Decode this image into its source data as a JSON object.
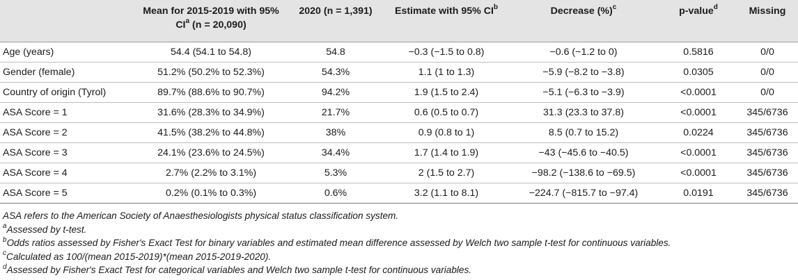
{
  "table": {
    "headers": [
      {
        "pre": "",
        "sup": "",
        "post": ""
      },
      {
        "pre": "Mean for 2015-2019 with 95% CI",
        "sup": "a",
        "post": " (n = 20,090)"
      },
      {
        "pre": "2020 (n = 1,391)",
        "sup": "",
        "post": ""
      },
      {
        "pre": "Estimate with 95% CI",
        "sup": "b",
        "post": ""
      },
      {
        "pre": "Decrease (%)",
        "sup": "c",
        "post": ""
      },
      {
        "pre": "p-value",
        "sup": "d",
        "post": ""
      },
      {
        "pre": "Missing",
        "sup": "",
        "post": ""
      }
    ],
    "rows": [
      [
        "Age (years)",
        "54.4 (54.1 to 54.8)",
        "54.8",
        "−0.3 (−1.5 to 0.8)",
        "−0.6 (−1.2 to 0)",
        "0.5816",
        "0/0"
      ],
      [
        "Gender (female)",
        "51.2% (50.2% to 52.3%)",
        "54.3%",
        "1.1 (1 to 1.3)",
        "−5.9 (−8.2 to −3.8)",
        "0.0305",
        "0/0"
      ],
      [
        "Country of origin (Tyrol)",
        "89.7% (88.6% to 90.7%)",
        "94.2%",
        "1.9 (1.5 to 2.4)",
        "−5.1 (−6.3 to −3.9)",
        "<0.0001",
        "0/0"
      ],
      [
        "ASA Score = 1",
        "31.6% (28.3% to 34.9%)",
        "21.7%",
        "0.6 (0.5 to 0.7)",
        "31.3 (23.3 to 37.8)",
        "<0.0001",
        "345/6736"
      ],
      [
        "ASA Score = 2",
        "41.5% (38.2% to 44.8%)",
        "38%",
        "0.9 (0.8 to 1)",
        "8.5 (0.7 to 15.2)",
        "0.0224",
        "345/6736"
      ],
      [
        "ASA Score = 3",
        "24.1% (23.6% to 24.5%)",
        "34.4%",
        "1.7 (1.4 to 1.9)",
        "−43 (−45.6 to −40.5)",
        "<0.0001",
        "345/6736"
      ],
      [
        "ASA Score = 4",
        "2.7% (2.2% to 3.1%)",
        "5.3%",
        "2 (1.5 to 2.7)",
        "−98.2 (−138.6 to −69.5)",
        "<0.0001",
        "345/6736"
      ],
      [
        "ASA Score = 5",
        "0.2% (0.1% to 0.3%)",
        "0.6%",
        "3.2 (1.1 to 8.1)",
        "−224.7 (−815.7 to −97.4)",
        "0.0191",
        "345/6736"
      ]
    ]
  },
  "notes": [
    {
      "sup": "",
      "text": "ASA refers to the American Society of Anaesthesiologists physical status classification system."
    },
    {
      "sup": "a",
      "text": "Assessed by t-test."
    },
    {
      "sup": "b",
      "text": "Odds ratios assessed by Fisher's Exact Test for binary variables and estimated mean difference assessed by Welch two sample t-test for continuous variables."
    },
    {
      "sup": "c",
      "text": "Calculated as 100/(mean 2015-2019)*(mean 2015-2019-2020)."
    },
    {
      "sup": "d",
      "text": "Assessed by Fisher's Exact Test for categorical variables and Welch two sample t-test for continuous variables."
    }
  ]
}
